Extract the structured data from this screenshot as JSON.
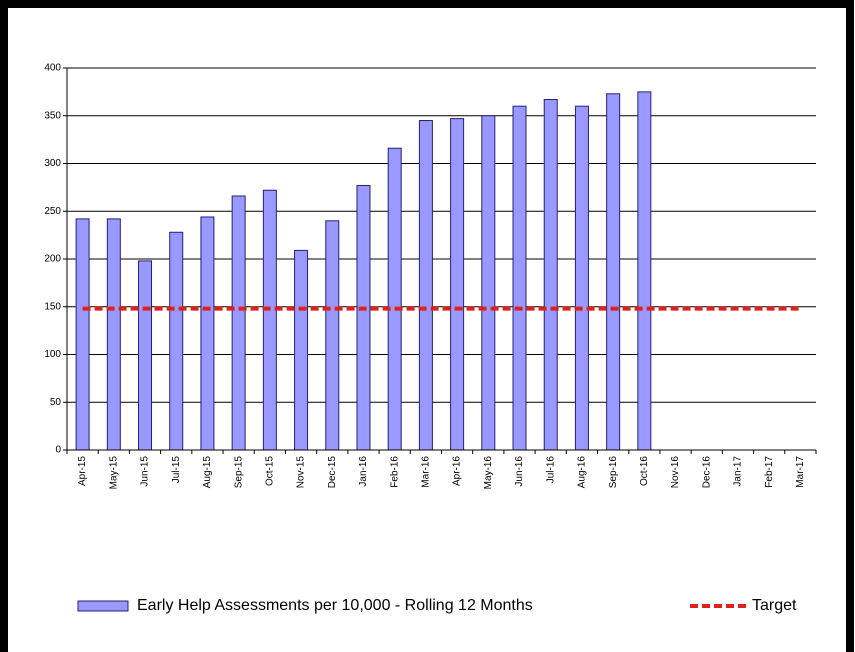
{
  "chart_data": {
    "type": "bar",
    "categories": [
      "Apr-15",
      "May-15",
      "Jun-15",
      "Jul-15",
      "Aug-15",
      "Sep-15",
      "Oct-15",
      "Nov-15",
      "Dec-15",
      "Jan-16",
      "Feb-16",
      "Mar-16",
      "Apr-16",
      "May-16",
      "Jun-16",
      "Jul-16",
      "Aug-16",
      "Sep-16",
      "Oct-16",
      "Nov-16",
      "Dec-16",
      "Jan-17",
      "Feb-17",
      "Mar-17"
    ],
    "series": [
      {
        "name": "Early Help Assessments per 10,000 - Rolling 12 Months",
        "type": "bar",
        "color": "#9999ff",
        "values": [
          242,
          242,
          198,
          228,
          244,
          266,
          272,
          209,
          240,
          277,
          316,
          345,
          347,
          350,
          360,
          367,
          360,
          373,
          375,
          null,
          null,
          null,
          null,
          null
        ]
      },
      {
        "name": "Target",
        "type": "line",
        "color": "#e0201b",
        "values": [
          148,
          148,
          148,
          148,
          148,
          148,
          148,
          148,
          148,
          148,
          148,
          148,
          148,
          148,
          148,
          148,
          148,
          148,
          148,
          148,
          148,
          148,
          148,
          148
        ]
      }
    ],
    "ylim": [
      0,
      400
    ],
    "yticks": [
      0,
      50,
      100,
      150,
      200,
      250,
      300,
      350,
      400
    ],
    "grid": true
  }
}
